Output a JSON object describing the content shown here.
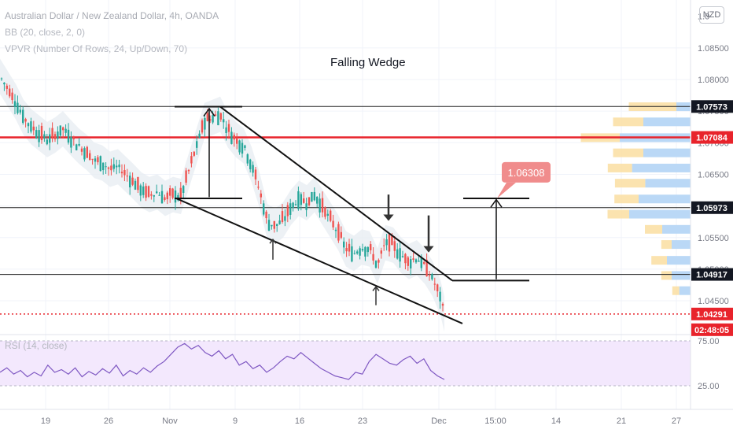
{
  "header": {
    "symbol_line": "Australian Dollar / New Zealand Dollar, 4h, OANDA",
    "indicator_bb": "BB (20, close, 2, 0)",
    "indicator_vpvr": "VPVR (Number Of Rows, 24, Up/Down, 70)",
    "currency_button": "NZD"
  },
  "chart_data": {
    "type": "candlestick",
    "title": "Falling Wedge",
    "y_axis": {
      "ticks": [
        1.085,
        1.08,
        1.075,
        1.07,
        1.065,
        1.06,
        1.055,
        1.05,
        1.045
      ],
      "tick_labels": [
        "1.08500",
        "1.08000",
        "1.07500",
        "1.07000",
        "1.06500",
        "1.06000",
        "1.05500",
        "1.05000",
        "1.04500"
      ],
      "top_partial_label": "1.0"
    },
    "x_axis": {
      "tick_labels": [
        "19",
        "26",
        "Nov",
        "9",
        "16",
        "23",
        "Dec",
        "15:00",
        "14",
        "21",
        "27"
      ]
    },
    "price_markers": [
      {
        "label": "1.07573",
        "value": 1.07573,
        "style": "black"
      },
      {
        "label": "1.07084",
        "value": 1.07084,
        "style": "red"
      },
      {
        "label": "1.05973",
        "value": 1.05973,
        "style": "black"
      },
      {
        "label": "1.04917",
        "value": 1.04917,
        "style": "black"
      },
      {
        "label": "1.04291",
        "value": 1.04291,
        "style": "red"
      },
      {
        "label": "02:48:05",
        "style": "red-countdown"
      }
    ],
    "horizontal_lines": [
      1.07573,
      1.07084,
      1.05973,
      1.04917
    ],
    "target_label": "1.06308",
    "target_value": 1.06308,
    "price_path": [
      [
        0,
        1.0805
      ],
      [
        10,
        1.0785
      ],
      [
        20,
        1.0765
      ],
      [
        30,
        1.074
      ],
      [
        40,
        1.0725
      ],
      [
        50,
        1.0715
      ],
      [
        60,
        1.0705
      ],
      [
        70,
        1.0712
      ],
      [
        80,
        1.0722
      ],
      [
        90,
        1.0708
      ],
      [
        100,
        1.0695
      ],
      [
        110,
        1.0685
      ],
      [
        120,
        1.0672
      ],
      [
        130,
        1.0668
      ],
      [
        140,
        1.0658
      ],
      [
        150,
        1.0662
      ],
      [
        160,
        1.065
      ],
      [
        170,
        1.0638
      ],
      [
        180,
        1.0625
      ],
      [
        190,
        1.0618
      ],
      [
        200,
        1.0622
      ],
      [
        210,
        1.0612
      ],
      [
        220,
        1.0618
      ],
      [
        230,
        1.0615
      ],
      [
        240,
        1.0655
      ],
      [
        250,
        1.0695
      ],
      [
        260,
        1.0735
      ],
      [
        270,
        1.074
      ],
      [
        280,
        1.0745
      ],
      [
        290,
        1.072
      ],
      [
        300,
        1.0705
      ],
      [
        310,
        1.0695
      ],
      [
        320,
        1.0665
      ],
      [
        330,
        1.0625
      ],
      [
        340,
        1.0575
      ],
      [
        350,
        1.0568
      ],
      [
        360,
        1.0578
      ],
      [
        370,
        1.0598
      ],
      [
        380,
        1.0612
      ],
      [
        390,
        1.0605
      ],
      [
        400,
        1.0618
      ],
      [
        410,
        1.0598
      ],
      [
        420,
        1.0578
      ],
      [
        430,
        1.0558
      ],
      [
        440,
        1.0532
      ],
      [
        450,
        1.0525
      ],
      [
        460,
        1.0535
      ],
      [
        470,
        1.0532
      ],
      [
        480,
        1.0505
      ],
      [
        490,
        1.0542
      ],
      [
        500,
        1.0538
      ],
      [
        510,
        1.0522
      ],
      [
        520,
        1.0512
      ],
      [
        530,
        1.0518
      ],
      [
        540,
        1.0505
      ],
      [
        550,
        1.0485
      ],
      [
        560,
        1.0455
      ],
      [
        565,
        1.0429
      ]
    ],
    "volume_profile": [
      {
        "price": 1.0757,
        "up": 0.55,
        "down": 0.15
      },
      {
        "price": 1.0733,
        "up": 0.35,
        "down": 0.5
      },
      {
        "price": 1.0708,
        "up": 0.45,
        "down": 0.75
      },
      {
        "price": 1.0684,
        "up": 0.35,
        "down": 0.5
      },
      {
        "price": 1.066,
        "up": 0.28,
        "down": 0.62
      },
      {
        "price": 1.0636,
        "up": 0.35,
        "down": 0.48
      },
      {
        "price": 1.0611,
        "up": 0.28,
        "down": 0.55
      },
      {
        "price": 1.0587,
        "up": 0.25,
        "down": 0.65
      },
      {
        "price": 1.0563,
        "up": 0.2,
        "down": 0.3
      },
      {
        "price": 1.0539,
        "up": 0.12,
        "down": 0.2
      },
      {
        "price": 1.0514,
        "up": 0.18,
        "down": 0.25
      },
      {
        "price": 1.049,
        "up": 0.12,
        "down": 0.2
      },
      {
        "price": 1.0466,
        "up": 0.08,
        "down": 0.12
      }
    ],
    "rsi": {
      "label": "RSI (14, close)",
      "levels": [
        75,
        25
      ],
      "level_labels": [
        "75.00",
        "25.00"
      ],
      "values": [
        40,
        45,
        38,
        42,
        35,
        40,
        36,
        48,
        40,
        43,
        38,
        45,
        35,
        41,
        37,
        44,
        39,
        48,
        36,
        42,
        38,
        45,
        40,
        47,
        52,
        60,
        68,
        72,
        66,
        70,
        62,
        58,
        64,
        55,
        60,
        48,
        52,
        44,
        48,
        40,
        45,
        52,
        58,
        55,
        62,
        56,
        50,
        44,
        40,
        36,
        34,
        32,
        40,
        38,
        52,
        60,
        55,
        50,
        48,
        54,
        58,
        50,
        55,
        42,
        36,
        32
      ]
    },
    "annotations": [
      {
        "type": "wedge-upper",
        "from": [
          280,
          1.0757
        ],
        "to": [
          575,
          1.0482
        ]
      },
      {
        "type": "wedge-lower",
        "from": [
          224,
          1.0612
        ],
        "to": [
          588,
          1.0414
        ]
      }
    ]
  }
}
